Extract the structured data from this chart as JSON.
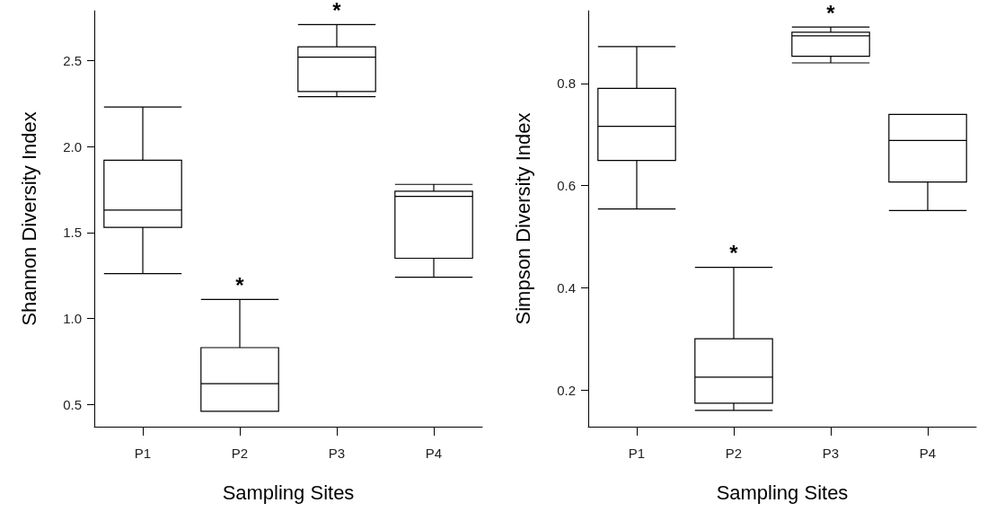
{
  "chart_data": [
    {
      "type": "box",
      "xlabel": "Sampling Sites",
      "ylabel": "Shannon Diversity Index",
      "categories": [
        "P1",
        "P2",
        "P3",
        "P4"
      ],
      "boxes": [
        {
          "low": 1.26,
          "q1": 1.53,
          "median": 1.63,
          "q3": 1.92,
          "high": 2.23
        },
        {
          "low": 0.46,
          "q1": 0.46,
          "median": 0.62,
          "q3": 0.83,
          "high": 1.11
        },
        {
          "low": 2.29,
          "q1": 2.32,
          "median": 2.52,
          "q3": 2.58,
          "high": 2.71
        },
        {
          "low": 1.24,
          "q1": 1.35,
          "median": 1.71,
          "q3": 1.74,
          "high": 1.78
        }
      ],
      "ylim": [
        0.37,
        2.79
      ],
      "yticks": [
        0.5,
        {
          "value": 1,
          "label": "1.0"
        },
        1.5,
        {
          "value": 2,
          "label": "2.0"
        },
        2.5
      ],
      "grid": false,
      "annotations": [
        {
          "text": "*",
          "x": "P2",
          "y": 1.11
        },
        {
          "text": "*",
          "x": "P3",
          "y": 2.71
        }
      ]
    },
    {
      "type": "box",
      "xlabel": "Sampling Sites",
      "ylabel": "Simpson Diversity Index",
      "categories": [
        "P1",
        "P2",
        "P3",
        "P4"
      ],
      "boxes": [
        {
          "low": 0.554,
          "q1": 0.649,
          "median": 0.716,
          "q3": 0.79,
          "high": 0.872
        },
        {
          "low": 0.16,
          "q1": 0.174,
          "median": 0.225,
          "q3": 0.3,
          "high": 0.44
        },
        {
          "low": 0.84,
          "q1": 0.853,
          "median": 0.893,
          "q3": 0.9,
          "high": 0.91
        },
        {
          "low": 0.551,
          "q1": 0.607,
          "median": 0.688,
          "q3": 0.739,
          "high": 0.739
        }
      ],
      "ylim": [
        0.128,
        0.942
      ],
      "yticks": [
        0.2,
        0.4,
        0.6,
        0.8
      ],
      "grid": false,
      "annotations": [
        {
          "text": "*",
          "x": "P2",
          "y": 0.44
        },
        {
          "text": "*",
          "x": "P3",
          "y": 0.91
        }
      ]
    }
  ]
}
